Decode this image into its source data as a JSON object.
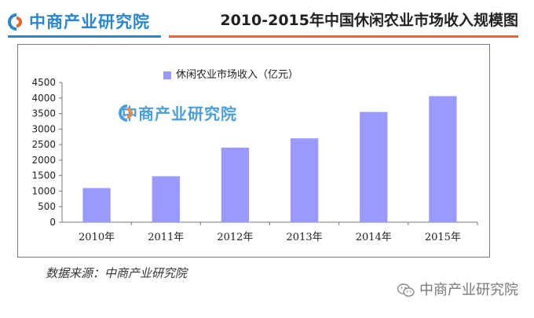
{
  "header": {
    "logo_text": "中商产业研究院",
    "title": "2010-2015年中国休闲农业市场收入规模图"
  },
  "watermark": {
    "text": "中商产业研究院"
  },
  "footer": {
    "source": "数据来源：中商产业研究院",
    "wechat_text": "中商产业研究院"
  },
  "colors": {
    "brand_blue": "#2a86cf",
    "accent_orange": "#e8652a",
    "bar": "#9999ff"
  },
  "chart_data": {
    "type": "bar",
    "title": "",
    "xlabel": "",
    "ylabel": "",
    "categories": [
      "2010年",
      "2011年",
      "2012年",
      "2013年",
      "2014年",
      "2015年"
    ],
    "series": [
      {
        "name": "休闲农业市场收入（亿元）",
        "values": [
          1100,
          1480,
          2400,
          2700,
          3550,
          4060
        ]
      }
    ],
    "ylim": [
      0,
      4500
    ],
    "yticks": [
      0,
      500,
      1000,
      1500,
      2000,
      2500,
      3000,
      3500,
      4000,
      4500
    ],
    "grid": false,
    "legend": "top-left"
  }
}
